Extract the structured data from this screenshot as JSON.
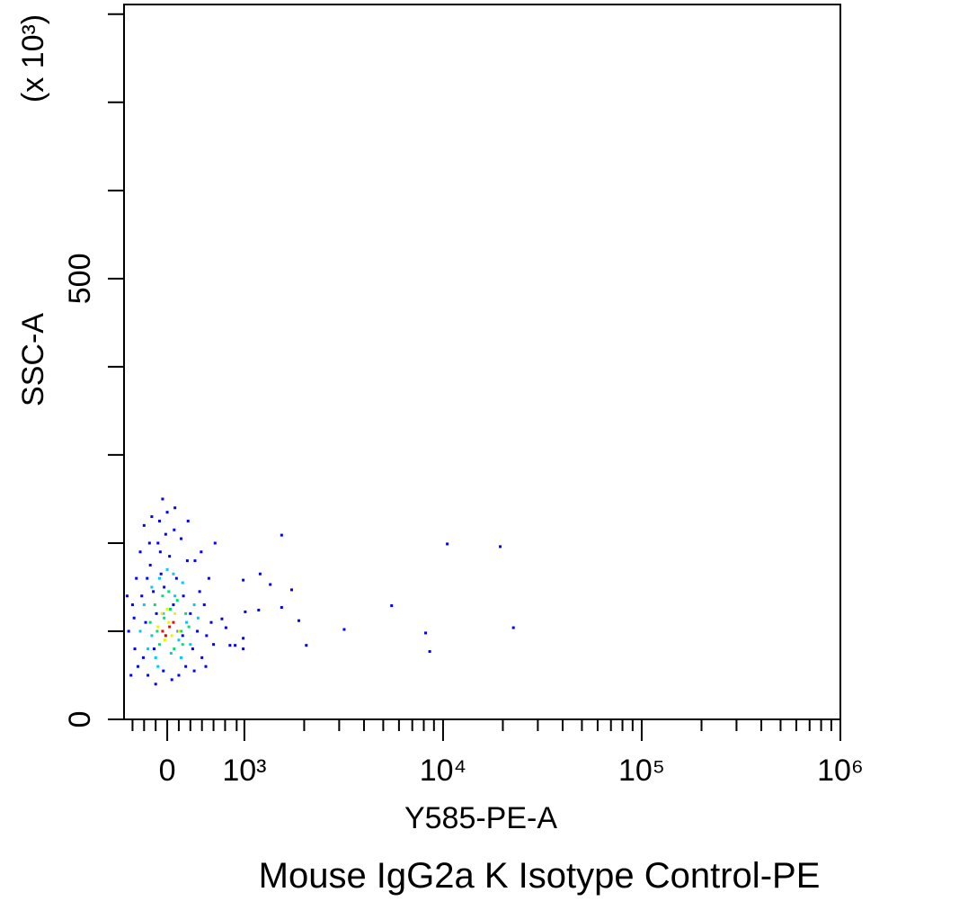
{
  "chart_data": {
    "type": "scatter",
    "title": "Mouse IgG2a K Isotype Control-PE",
    "x_label": "Y585-PE-A",
    "y_label": "SSC-A",
    "y_multiplier": "(x 10³)",
    "xscale": "biexponential",
    "linthresh": 1000,
    "xlim": [
      -560,
      1000000
    ],
    "ylim": [
      0,
      811
    ],
    "xticks": [
      0,
      {
        "value": 1000,
        "label": "10³"
      },
      {
        "value": 10000,
        "label": "10⁴"
      },
      {
        "value": 100000,
        "label": "10⁵"
      },
      {
        "value": 1000000,
        "label": "10⁶"
      }
    ],
    "xminor_ticks": [
      -450,
      -300,
      -150,
      150,
      300,
      450,
      600,
      750,
      900,
      2000,
      3000,
      4000,
      5000,
      6000,
      7000,
      8000,
      9000,
      20000,
      30000,
      40000,
      50000,
      60000,
      70000,
      80000,
      90000,
      200000,
      300000,
      400000,
      500000,
      600000,
      700000,
      800000,
      900000
    ],
    "yticks": [
      0,
      500
    ],
    "yminor_ticks": [
      100,
      200,
      300,
      400,
      600,
      700,
      800
    ],
    "series": [
      {
        "color": "#0000ff",
        "x": [
          -500,
          -450,
          -420,
          -400,
          -380,
          -350,
          -300,
          -280,
          -250,
          -220,
          -200,
          -180,
          -150,
          -120,
          -100,
          -80,
          -50,
          -20,
          0,
          30,
          60,
          90,
          120,
          150,
          180,
          210,
          240,
          270,
          300,
          330,
          360,
          390,
          420,
          450,
          480,
          510,
          540,
          570,
          600,
          620,
          -520,
          -470,
          -330,
          -260,
          -140,
          -60,
          100,
          200,
          260,
          350,
          440,
          500,
          -430,
          -310,
          -230,
          -170,
          -90,
          -40,
          80,
          140,
          1540,
          985,
          1200,
          1350,
          1730,
          1540,
          1180,
          1010,
          1880,
          813,
          880,
          985,
          985,
          2050,
          3180,
          5510,
          8170,
          8570,
          10500,
          19400,
          22600,
          709,
          761
        ],
        "values": [
          100,
          130,
          80,
          160,
          60,
          190,
          220,
          110,
          50,
          175,
          230,
          145,
          40,
          200,
          225,
          165,
          55,
          210,
          235,
          185,
          45,
          215,
          160,
          50,
          205,
          140,
          60,
          225,
          120,
          80,
          180,
          100,
          145,
          70,
          130,
          95,
          160,
          110,
          85,
          200,
          140,
          50,
          140,
          160,
          120,
          250,
          240,
          95,
          180,
          55,
          190,
          60,
          115,
          70,
          200,
          80,
          190,
          150,
          130,
          100,
          209,
          158,
          165,
          153,
          147,
          127,
          124,
          122,
          112,
          84,
          84,
          92,
          80,
          84,
          102,
          129,
          98,
          77,
          199,
          196,
          104,
          114,
          104
        ]
      },
      {
        "color": "#00c8ff",
        "x": [
          -350,
          -300,
          -250,
          -200,
          -150,
          -100,
          -50,
          0,
          50,
          100,
          150,
          200,
          250,
          300,
          350,
          -200,
          80,
          -120,
          180,
          400
        ],
        "values": [
          100,
          130,
          80,
          150,
          70,
          160,
          120,
          170,
          75,
          140,
          90,
          155,
          110,
          85,
          130,
          95,
          165,
          60,
          70,
          115
        ]
      },
      {
        "color": "#00e070",
        "x": [
          -220,
          -160,
          -100,
          -60,
          -20,
          40,
          90,
          130,
          180,
          240,
          -130,
          20,
          200,
          280,
          -40
        ],
        "values": [
          110,
          130,
          85,
          140,
          95,
          125,
          80,
          135,
          100,
          120,
          100,
          145,
          85,
          105,
          115
        ]
      },
      {
        "color": "#f0f000",
        "x": [
          -120,
          -70,
          -30,
          20,
          60,
          100,
          150,
          0
        ],
        "values": [
          105,
          120,
          90,
          110,
          95,
          120,
          100,
          125
        ]
      },
      {
        "color": "#ff0000",
        "x": [
          -60,
          30,
          80,
          -20
        ],
        "values": [
          100,
          105,
          110,
          95
        ]
      }
    ]
  }
}
